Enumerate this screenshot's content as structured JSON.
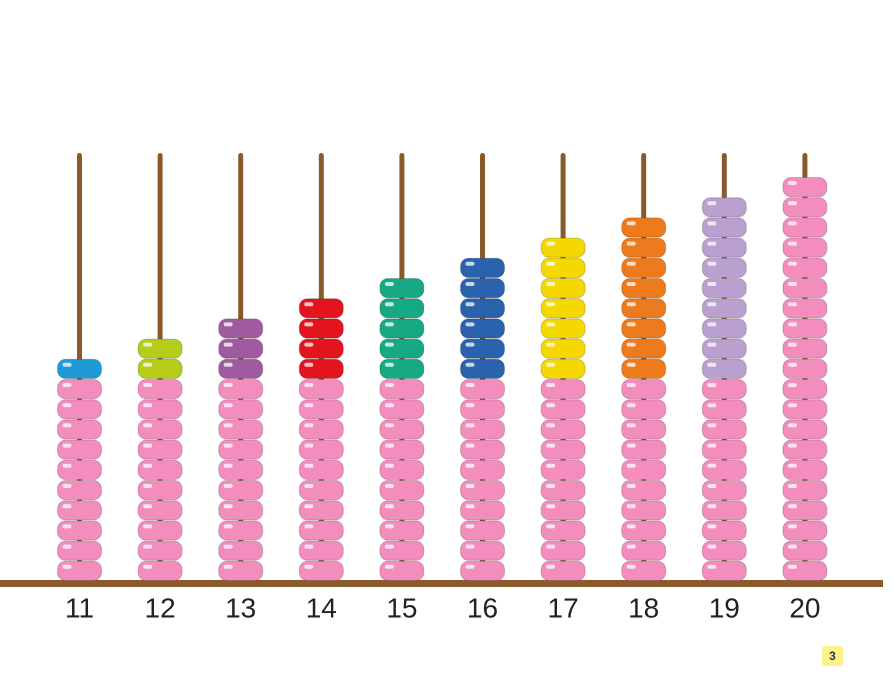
{
  "columns": [
    {
      "label": "11",
      "tens": 10,
      "ones": 1,
      "color": "#1e9ad6"
    },
    {
      "label": "12",
      "tens": 10,
      "ones": 2,
      "color": "#b5cc18"
    },
    {
      "label": "13",
      "tens": 10,
      "ones": 3,
      "color": "#a05ba0"
    },
    {
      "label": "14",
      "tens": 10,
      "ones": 4,
      "color": "#e3141e"
    },
    {
      "label": "15",
      "tens": 10,
      "ones": 5,
      "color": "#17a884"
    },
    {
      "label": "16",
      "tens": 10,
      "ones": 6,
      "color": "#2a62ad"
    },
    {
      "label": "17",
      "tens": 10,
      "ones": 7,
      "color": "#f5d800"
    },
    {
      "label": "18",
      "tens": 10,
      "ones": 8,
      "color": "#ee7a1e"
    },
    {
      "label": "19",
      "tens": 10,
      "ones": 9,
      "color": "#b9a0cf"
    },
    {
      "label": "20",
      "tens": 10,
      "ones": 10,
      "color": "#f28dbd"
    }
  ],
  "tens_color": "#f28dbd",
  "page_number": "3"
}
